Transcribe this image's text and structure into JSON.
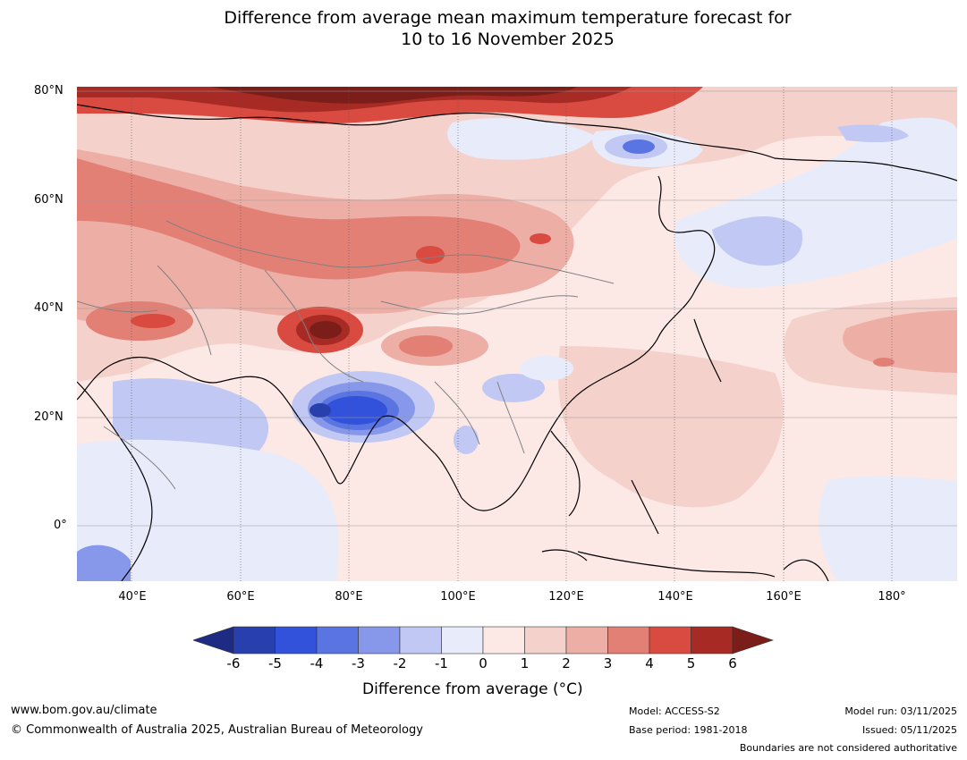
{
  "title": {
    "line1": "Difference from average mean maximum temperature forecast for",
    "line2": "10 to 16 November 2025"
  },
  "map": {
    "lat_labels": [
      "80°N",
      "60°N",
      "40°N",
      "20°N",
      "0°"
    ],
    "lon_labels": [
      "40°E",
      "60°E",
      "80°E",
      "100°E",
      "120°E",
      "140°E",
      "160°E",
      "180°"
    ],
    "extent": {
      "lon_min": 30,
      "lon_max": 192,
      "lat_min": -10,
      "lat_max": 81
    }
  },
  "colorbar": {
    "ticks": [
      "-6",
      "-5",
      "-4",
      "-3",
      "-2",
      "-1",
      "0",
      "1",
      "2",
      "3",
      "4",
      "5",
      "6"
    ],
    "colors": [
      "#1d2b84",
      "#283fae",
      "#3352dc",
      "#5a74e2",
      "#8798ea",
      "#c0c8f3",
      "#e8ebfa",
      "#fce9e6",
      "#f5d1cc",
      "#edaea6",
      "#e38076",
      "#d94b40",
      "#a72b24",
      "#7b1e1a"
    ],
    "label": "Difference from average (°C)"
  },
  "footer": {
    "url": "www.bom.gov.au/climate",
    "copyright": "© Commonwealth of Australia 2025, Australian Bureau of Meteorology",
    "model": "Model: ACCESS-S2",
    "base_period": "Base period: 1981-2018",
    "model_run": "Model run: 03/11/2025",
    "issued": "Issued: 05/11/2025",
    "disclaimer": "Boundaries are not considered authoritative"
  }
}
